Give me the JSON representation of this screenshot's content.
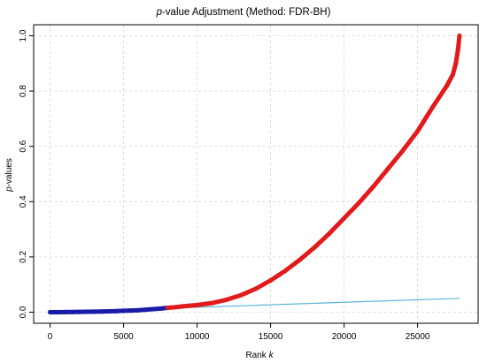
{
  "chart_data": {
    "type": "scatter",
    "title_italic": "p",
    "title_rest": "-value Adjustment (Method: FDR-BH)",
    "xlabel_prefix": "Rank ",
    "xlabel_italic": "k",
    "ylabel_italic": "p",
    "ylabel_rest": "-values",
    "xlim": [
      0,
      28000
    ],
    "ylim": [
      0,
      1.0
    ],
    "x_ticks": [
      {
        "value": 0,
        "label": "0"
      },
      {
        "value": 5000,
        "label": "5000"
      },
      {
        "value": 10000,
        "label": "10000"
      },
      {
        "value": 15000,
        "label": "15000"
      },
      {
        "value": 20000,
        "label": "20000"
      },
      {
        "value": 25000,
        "label": "25000"
      }
    ],
    "y_ticks": [
      {
        "value": 0,
        "label": "0.0"
      },
      {
        "value": 0.2,
        "label": "0.2"
      },
      {
        "value": 0.4,
        "label": "0.4"
      },
      {
        "value": 0.6,
        "label": "0.6"
      },
      {
        "value": 0.8,
        "label": "0.8"
      },
      {
        "value": 1.0,
        "label": "1.0"
      }
    ],
    "grid": true,
    "series": [
      {
        "role": "significant",
        "color": "#1a1aa8",
        "points": [
          [
            0,
            0.0
          ],
          [
            500,
            0.0
          ],
          [
            1000,
            0.0003
          ],
          [
            1500,
            0.0006
          ],
          [
            2000,
            0.001
          ],
          [
            2500,
            0.0015
          ],
          [
            3000,
            0.002
          ],
          [
            3500,
            0.0025
          ],
          [
            4000,
            0.003
          ],
          [
            4500,
            0.004
          ],
          [
            5000,
            0.005
          ],
          [
            5500,
            0.006
          ],
          [
            6000,
            0.007
          ],
          [
            6500,
            0.009
          ],
          [
            7000,
            0.011
          ],
          [
            7500,
            0.013
          ],
          [
            8000,
            0.016
          ]
        ]
      },
      {
        "role": "not-significant",
        "color": "#e31a1c",
        "points": [
          [
            8000,
            0.016
          ],
          [
            8500,
            0.018
          ],
          [
            9000,
            0.021
          ],
          [
            10000,
            0.026
          ],
          [
            11000,
            0.033
          ],
          [
            12000,
            0.045
          ],
          [
            13000,
            0.062
          ],
          [
            14000,
            0.085
          ],
          [
            15000,
            0.115
          ],
          [
            16000,
            0.15
          ],
          [
            17000,
            0.19
          ],
          [
            18000,
            0.235
          ],
          [
            19000,
            0.285
          ],
          [
            20000,
            0.34
          ],
          [
            21000,
            0.395
          ],
          [
            22000,
            0.455
          ],
          [
            23000,
            0.52
          ],
          [
            24000,
            0.585
          ],
          [
            25000,
            0.655
          ],
          [
            26000,
            0.74
          ],
          [
            27000,
            0.82
          ],
          [
            27400,
            0.86
          ],
          [
            27600,
            0.9
          ],
          [
            27750,
            0.95
          ],
          [
            27850,
            1.0
          ]
        ]
      }
    ],
    "reference_line": {
      "color": "#5ab4d6",
      "points": [
        [
          0,
          0.0
        ],
        [
          27850,
          0.05
        ]
      ]
    },
    "frame_color": "#000000",
    "grid_color": "#d6d6d6"
  }
}
